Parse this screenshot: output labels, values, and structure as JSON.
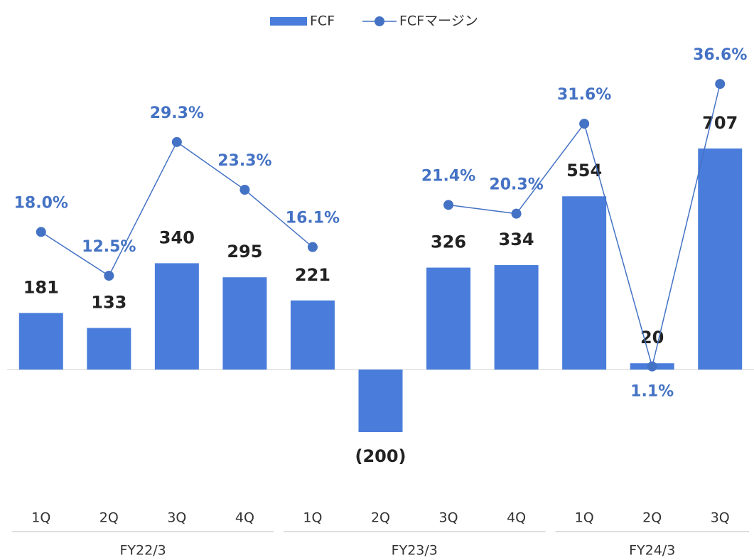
{
  "chart_data": {
    "type": "bar-line",
    "groups": [
      {
        "name": "FY22/3",
        "categories": [
          "1Q",
          "2Q",
          "3Q",
          "4Q"
        ]
      },
      {
        "name": "FY23/3",
        "categories": [
          "1Q",
          "2Q",
          "3Q",
          "4Q"
        ]
      },
      {
        "name": "FY24/3",
        "categories": [
          "1Q",
          "2Q",
          "3Q"
        ]
      }
    ],
    "series": [
      {
        "name": "FCF",
        "type": "bar",
        "color": "#4a7ddb",
        "values": [
          181,
          133,
          340,
          295,
          221,
          -200,
          326,
          334,
          554,
          20,
          707
        ],
        "value_labels": [
          "181",
          "133",
          "340",
          "295",
          "221",
          "(200)",
          "326",
          "334",
          "554",
          "20",
          "707"
        ]
      },
      {
        "name": "FCFマージン",
        "type": "line",
        "axis": "y2",
        "color": "#4472c4",
        "values": [
          18.0,
          12.5,
          29.3,
          23.3,
          16.1,
          null,
          21.4,
          20.3,
          31.6,
          1.1,
          36.6
        ],
        "value_labels": [
          "18.0%",
          "12.5%",
          "29.3%",
          "23.3%",
          "16.1%",
          null,
          "21.4%",
          "20.3%",
          "31.6%",
          "1.1%",
          "36.6%"
        ]
      }
    ],
    "ylim": [
      -400,
      1000
    ],
    "y2lim": [
      -15,
      40
    ],
    "legend": "top"
  }
}
